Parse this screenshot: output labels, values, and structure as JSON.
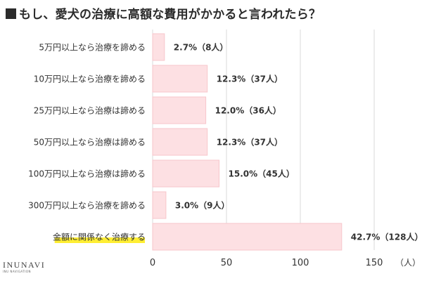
{
  "title": "もし、愛犬の治療に高額な費用がかかると言われたら？",
  "logo": {
    "main": "INUNAVI",
    "sub": "INU NAVIGATION"
  },
  "colors": {
    "bar_fill": "#fde0e3",
    "bar_stroke": "#f7c6cb",
    "highlight": "#ffee33",
    "grid": "#d9d9d9",
    "text": "#333333"
  },
  "chart_data": {
    "type": "bar",
    "orientation": "horizontal",
    "title": "もし、愛犬の治療に高額な費用がかかると言われたら？",
    "categories": [
      "5万円以上なら治療を諦める",
      "10万円以上なら治療を諦める",
      "25万円以上なら治療は諦める",
      "50万円以上なら治療は諦める",
      "100万円以上なら治療は諦める",
      "300万円以上なら治療を諦める",
      "金額に関係なく治療する"
    ],
    "values": [
      8,
      37,
      36,
      37,
      45,
      9,
      128
    ],
    "data_labels": [
      "2.7%（8人）",
      "12.3%（37人）",
      "12.0%（36人）",
      "12.3%（37人）",
      "15.0%（45人）",
      "3.0%（9人）",
      "42.7%（128人）"
    ],
    "highlighted_category": "金額に関係なく治療する",
    "xlim": [
      0,
      150
    ],
    "xticks": [
      0,
      50,
      100,
      150
    ],
    "xlabel": "（人）",
    "ylabel": "",
    "grid": true
  }
}
